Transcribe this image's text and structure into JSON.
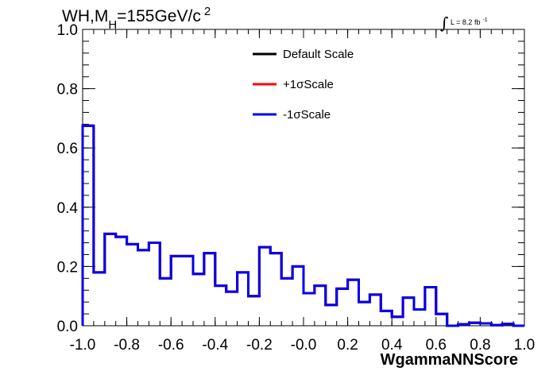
{
  "title": {
    "prefix": "WH,M",
    "subscript": "H",
    "suffix": "=155GeV/c",
    "superscript": "2"
  },
  "lumi": {
    "integral": "∫",
    "text": "L = 8.2 fb",
    "superscript": "-1"
  },
  "chart_data": {
    "type": "line",
    "step": true,
    "xlabel": "WgammaNNScore",
    "ylabel": "",
    "xlim": [
      -1.0,
      1.0
    ],
    "ylim": [
      0.0,
      1.0
    ],
    "x_tick_labels": [
      "-1.0",
      "-0.8",
      "-0.6",
      "-0.4",
      "-0.2",
      "-0.0",
      "0.2",
      "0.4",
      "0.6",
      "0.8",
      "1.0"
    ],
    "y_tick_labels": [
      "0.0",
      "0.2",
      "0.4",
      "0.6",
      "0.8",
      "1.0"
    ],
    "legend_position": "top-center",
    "bin_edges": [
      -1.0,
      -0.95,
      -0.9,
      -0.85,
      -0.8,
      -0.75,
      -0.7,
      -0.65,
      -0.6,
      -0.55,
      -0.5,
      -0.45,
      -0.4,
      -0.35,
      -0.3,
      -0.25,
      -0.2,
      -0.15,
      -0.1,
      -0.05,
      0.0,
      0.05,
      0.1,
      0.15,
      0.2,
      0.25,
      0.3,
      0.35,
      0.4,
      0.45,
      0.5,
      0.55,
      0.6,
      0.65,
      0.7,
      0.75,
      0.8,
      0.85,
      0.9,
      0.95,
      1.0
    ],
    "series": [
      {
        "name": "Default Scale",
        "color": "#000000",
        "values": [
          0.675,
          0.18,
          0.31,
          0.3,
          0.275,
          0.255,
          0.28,
          0.16,
          0.235,
          0.235,
          0.175,
          0.245,
          0.135,
          0.115,
          0.18,
          0.1,
          0.265,
          0.245,
          0.16,
          0.2,
          0.11,
          0.135,
          0.07,
          0.125,
          0.155,
          0.08,
          0.105,
          0.05,
          0.03,
          0.095,
          0.055,
          0.13,
          0.04,
          0.0,
          0.005,
          0.01,
          0.008,
          0.002,
          0.006,
          0.0
        ]
      },
      {
        "name": "+1σScale",
        "color": "#ff0000",
        "values": [
          0.675,
          0.18,
          0.31,
          0.3,
          0.275,
          0.255,
          0.28,
          0.16,
          0.235,
          0.235,
          0.175,
          0.245,
          0.135,
          0.115,
          0.18,
          0.1,
          0.265,
          0.245,
          0.16,
          0.2,
          0.11,
          0.135,
          0.07,
          0.125,
          0.155,
          0.08,
          0.105,
          0.05,
          0.03,
          0.095,
          0.055,
          0.13,
          0.04,
          0.0,
          0.005,
          0.01,
          0.008,
          0.002,
          0.006,
          0.0
        ]
      },
      {
        "name": "-1σScale",
        "color": "#0000ee",
        "values": [
          0.675,
          0.18,
          0.31,
          0.3,
          0.275,
          0.255,
          0.28,
          0.16,
          0.235,
          0.235,
          0.175,
          0.245,
          0.135,
          0.115,
          0.18,
          0.1,
          0.265,
          0.245,
          0.16,
          0.2,
          0.11,
          0.135,
          0.07,
          0.125,
          0.155,
          0.08,
          0.105,
          0.05,
          0.03,
          0.095,
          0.055,
          0.13,
          0.04,
          0.0,
          0.005,
          0.01,
          0.008,
          0.002,
          0.006,
          0.0
        ]
      }
    ]
  }
}
